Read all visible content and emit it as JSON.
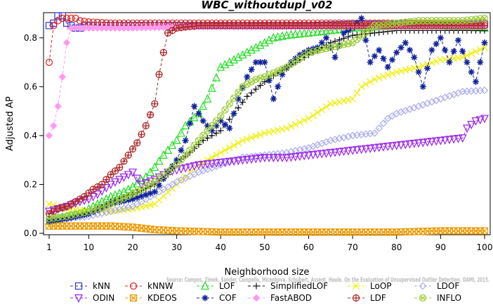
{
  "chart_data": {
    "type": "line",
    "title": "WBC_withoutdupl_v02",
    "xlabel": "Neighborhood size",
    "ylabel": "Adjusted AP",
    "xlim": [
      1,
      100
    ],
    "ylim": [
      0,
      0.88
    ],
    "x_ticks": [
      1,
      10,
      20,
      30,
      40,
      50,
      60,
      70,
      80,
      90,
      100
    ],
    "y_ticks": [
      0.0,
      0.2,
      0.4,
      0.6,
      0.8
    ],
    "y_tick_labels": [
      "0.0",
      "0.2",
      "0.4",
      "0.6",
      "0.8"
    ],
    "legend_position": "bottom",
    "watermark": "Source: Campos, Zimek, Sander, Campello, Micenkova, Schubert, Assent, Houle. On the Evaluation of Unsupervised Outlier Detection. DAMI, 2015.",
    "series": [
      {
        "name": "kNN",
        "color": "#3333cc",
        "marker": "square",
        "points": [
          [
            1,
            0.85
          ],
          [
            2,
            0.86
          ],
          [
            3,
            0.89
          ],
          [
            4,
            0.89
          ],
          [
            5,
            0.86
          ],
          [
            6,
            0.85
          ],
          [
            7,
            0.84
          ],
          [
            8,
            0.84
          ],
          [
            9,
            0.85
          ],
          [
            10,
            0.85
          ],
          [
            12,
            0.85
          ],
          [
            15,
            0.85
          ],
          [
            20,
            0.85
          ],
          [
            30,
            0.85
          ],
          [
            40,
            0.85
          ],
          [
            50,
            0.85
          ],
          [
            60,
            0.85
          ],
          [
            70,
            0.855
          ],
          [
            80,
            0.855
          ],
          [
            90,
            0.855
          ],
          [
            100,
            0.855
          ]
        ]
      },
      {
        "name": "kNNW",
        "color": "#dd2222",
        "marker": "circle",
        "points": [
          [
            1,
            0.7
          ],
          [
            2,
            0.85
          ],
          [
            3,
            0.87
          ],
          [
            4,
            0.88
          ],
          [
            5,
            0.88
          ],
          [
            6,
            0.88
          ],
          [
            7,
            0.88
          ],
          [
            8,
            0.87
          ],
          [
            10,
            0.865
          ],
          [
            15,
            0.86
          ],
          [
            20,
            0.86
          ],
          [
            30,
            0.86
          ],
          [
            40,
            0.86
          ],
          [
            50,
            0.86
          ],
          [
            60,
            0.86
          ],
          [
            70,
            0.86
          ],
          [
            80,
            0.86
          ],
          [
            90,
            0.86
          ],
          [
            100,
            0.86
          ]
        ]
      },
      {
        "name": "LOF",
        "color": "#22dd22",
        "marker": "triangle-up",
        "points": [
          [
            1,
            0.05
          ],
          [
            3,
            0.06
          ],
          [
            5,
            0.07
          ],
          [
            8,
            0.08
          ],
          [
            10,
            0.1
          ],
          [
            12,
            0.12
          ],
          [
            15,
            0.15
          ],
          [
            18,
            0.17
          ],
          [
            20,
            0.19
          ],
          [
            23,
            0.23
          ],
          [
            25,
            0.27
          ],
          [
            27,
            0.32
          ],
          [
            30,
            0.38
          ],
          [
            32,
            0.44
          ],
          [
            35,
            0.49
          ],
          [
            37,
            0.55
          ],
          [
            40,
            0.68
          ],
          [
            42,
            0.7
          ],
          [
            45,
            0.73
          ],
          [
            48,
            0.76
          ],
          [
            50,
            0.78
          ],
          [
            52,
            0.8
          ],
          [
            55,
            0.81
          ],
          [
            60,
            0.82
          ],
          [
            65,
            0.83
          ],
          [
            70,
            0.84
          ],
          [
            75,
            0.845
          ],
          [
            80,
            0.85
          ],
          [
            85,
            0.85
          ],
          [
            90,
            0.85
          ],
          [
            95,
            0.845
          ],
          [
            100,
            0.84
          ]
        ]
      },
      {
        "name": "SimplifiedLOF",
        "color": "#111111",
        "marker": "plus",
        "points": [
          [
            1,
            0.05
          ],
          [
            5,
            0.06
          ],
          [
            10,
            0.08
          ],
          [
            15,
            0.13
          ],
          [
            20,
            0.16
          ],
          [
            25,
            0.2
          ],
          [
            28,
            0.24
          ],
          [
            30,
            0.29
          ],
          [
            33,
            0.33
          ],
          [
            36,
            0.38
          ],
          [
            40,
            0.42
          ],
          [
            43,
            0.49
          ],
          [
            46,
            0.56
          ],
          [
            50,
            0.62
          ],
          [
            55,
            0.68
          ],
          [
            60,
            0.73
          ],
          [
            65,
            0.78
          ],
          [
            70,
            0.81
          ],
          [
            75,
            0.82
          ],
          [
            80,
            0.83
          ],
          [
            85,
            0.83
          ],
          [
            90,
            0.83
          ],
          [
            95,
            0.83
          ],
          [
            100,
            0.83
          ]
        ]
      },
      {
        "name": "LoOP",
        "color": "#eeee00",
        "marker": "x",
        "points": [
          [
            1,
            0.12
          ],
          [
            5,
            0.1
          ],
          [
            10,
            0.09
          ],
          [
            15,
            0.09
          ],
          [
            20,
            0.1
          ],
          [
            25,
            0.12
          ],
          [
            30,
            0.2
          ],
          [
            35,
            0.28
          ],
          [
            40,
            0.33
          ],
          [
            45,
            0.38
          ],
          [
            50,
            0.41
          ],
          [
            55,
            0.43
          ],
          [
            60,
            0.47
          ],
          [
            65,
            0.53
          ],
          [
            70,
            0.55
          ],
          [
            72,
            0.6
          ],
          [
            75,
            0.63
          ],
          [
            80,
            0.66
          ],
          [
            85,
            0.68
          ],
          [
            90,
            0.71
          ],
          [
            95,
            0.72
          ],
          [
            100,
            0.76
          ]
        ]
      },
      {
        "name": "LDOF",
        "color": "#aaaaee",
        "marker": "diamond",
        "points": [
          [
            1,
            0.06
          ],
          [
            5,
            0.06
          ],
          [
            10,
            0.07
          ],
          [
            15,
            0.09
          ],
          [
            20,
            0.11
          ],
          [
            25,
            0.16
          ],
          [
            30,
            0.21
          ],
          [
            35,
            0.25
          ],
          [
            40,
            0.28
          ],
          [
            45,
            0.31
          ],
          [
            50,
            0.32
          ],
          [
            55,
            0.33
          ],
          [
            60,
            0.35
          ],
          [
            65,
            0.38
          ],
          [
            70,
            0.4
          ],
          [
            75,
            0.41
          ],
          [
            78,
            0.47
          ],
          [
            80,
            0.49
          ],
          [
            85,
            0.52
          ],
          [
            90,
            0.55
          ],
          [
            95,
            0.58
          ],
          [
            100,
            0.585
          ]
        ]
      },
      {
        "name": "ODIN",
        "color": "#9922ee",
        "marker": "triangle-down",
        "points": [
          [
            1,
            0.09
          ],
          [
            3,
            0.1
          ],
          [
            5,
            0.11
          ],
          [
            8,
            0.13
          ],
          [
            10,
            0.14
          ],
          [
            12,
            0.16
          ],
          [
            15,
            0.2
          ],
          [
            18,
            0.23
          ],
          [
            20,
            0.25
          ],
          [
            22,
            0.2
          ],
          [
            25,
            0.22
          ],
          [
            28,
            0.25
          ],
          [
            30,
            0.26
          ],
          [
            35,
            0.28
          ],
          [
            40,
            0.29
          ],
          [
            45,
            0.3
          ],
          [
            50,
            0.31
          ],
          [
            55,
            0.31
          ],
          [
            60,
            0.32
          ],
          [
            65,
            0.33
          ],
          [
            70,
            0.34
          ],
          [
            75,
            0.35
          ],
          [
            80,
            0.36
          ],
          [
            85,
            0.37
          ],
          [
            90,
            0.38
          ],
          [
            95,
            0.39
          ],
          [
            96,
            0.43
          ],
          [
            98,
            0.46
          ],
          [
            100,
            0.47
          ]
        ]
      },
      {
        "name": "KDEOS",
        "color": "#ee9900",
        "marker": "x-square",
        "points": [
          [
            1,
            0.03
          ],
          [
            5,
            0.03
          ],
          [
            10,
            0.03
          ],
          [
            15,
            0.03
          ],
          [
            20,
            0.025
          ],
          [
            25,
            0.015
          ],
          [
            30,
            0.01
          ],
          [
            40,
            0.005
          ],
          [
            50,
            0.005
          ],
          [
            60,
            0.005
          ],
          [
            70,
            0.005
          ],
          [
            80,
            0.005
          ],
          [
            90,
            0.01
          ],
          [
            100,
            0.01
          ]
        ]
      },
      {
        "name": "COF",
        "color": "#112299",
        "marker": "star",
        "points": [
          [
            1,
            0.05
          ],
          [
            5,
            0.06
          ],
          [
            10,
            0.08
          ],
          [
            15,
            0.12
          ],
          [
            20,
            0.14
          ],
          [
            25,
            0.17
          ],
          [
            28,
            0.25
          ],
          [
            30,
            0.3
          ],
          [
            32,
            0.38
          ],
          [
            34,
            0.52
          ],
          [
            36,
            0.46
          ],
          [
            38,
            0.42
          ],
          [
            40,
            0.46
          ],
          [
            42,
            0.43
          ],
          [
            44,
            0.55
          ],
          [
            46,
            0.64
          ],
          [
            48,
            0.7
          ],
          [
            50,
            0.7
          ],
          [
            52,
            0.55
          ],
          [
            54,
            0.65
          ],
          [
            56,
            0.7
          ],
          [
            58,
            0.73
          ],
          [
            60,
            0.75
          ],
          [
            62,
            0.76
          ],
          [
            64,
            0.8
          ],
          [
            66,
            0.72
          ],
          [
            68,
            0.82
          ],
          [
            70,
            0.84
          ],
          [
            72,
            0.88
          ],
          [
            74,
            0.7
          ],
          [
            76,
            0.75
          ],
          [
            78,
            0.68
          ],
          [
            80,
            0.74
          ],
          [
            82,
            0.78
          ],
          [
            84,
            0.72
          ],
          [
            86,
            0.6
          ],
          [
            88,
            0.75
          ],
          [
            90,
            0.8
          ],
          [
            92,
            0.7
          ],
          [
            94,
            0.79
          ],
          [
            96,
            0.7
          ],
          [
            98,
            0.62
          ],
          [
            100,
            0.78
          ]
        ]
      },
      {
        "name": "FastABOD",
        "color": "#ff99ee",
        "marker": "diamond-filled",
        "points": [
          [
            1,
            0.4
          ],
          [
            2,
            0.44
          ],
          [
            3,
            0.52
          ],
          [
            4,
            0.64
          ],
          [
            5,
            0.78
          ],
          [
            6,
            0.84
          ],
          [
            8,
            0.84
          ],
          [
            10,
            0.84
          ],
          [
            15,
            0.84
          ],
          [
            20,
            0.84
          ],
          [
            30,
            0.845
          ],
          [
            40,
            0.845
          ],
          [
            50,
            0.845
          ],
          [
            60,
            0.845
          ],
          [
            70,
            0.845
          ],
          [
            80,
            0.845
          ],
          [
            90,
            0.845
          ],
          [
            100,
            0.845
          ]
        ]
      },
      {
        "name": "LDF",
        "color": "#aa2222",
        "marker": "circle-plus",
        "points": [
          [
            1,
            0.08
          ],
          [
            3,
            0.1
          ],
          [
            5,
            0.11
          ],
          [
            7,
            0.13
          ],
          [
            9,
            0.15
          ],
          [
            11,
            0.18
          ],
          [
            13,
            0.2
          ],
          [
            15,
            0.24
          ],
          [
            17,
            0.27
          ],
          [
            19,
            0.32
          ],
          [
            21,
            0.37
          ],
          [
            23,
            0.44
          ],
          [
            25,
            0.53
          ],
          [
            26,
            0.65
          ],
          [
            27,
            0.74
          ],
          [
            28,
            0.82
          ],
          [
            30,
            0.84
          ],
          [
            35,
            0.85
          ],
          [
            40,
            0.85
          ],
          [
            50,
            0.85
          ],
          [
            60,
            0.85
          ],
          [
            70,
            0.85
          ],
          [
            80,
            0.85
          ],
          [
            90,
            0.85
          ],
          [
            100,
            0.85
          ]
        ]
      },
      {
        "name": "INFLO",
        "color": "#99cc33",
        "marker": "x-circle",
        "points": [
          [
            1,
            0.06
          ],
          [
            5,
            0.07
          ],
          [
            10,
            0.09
          ],
          [
            15,
            0.12
          ],
          [
            20,
            0.16
          ],
          [
            25,
            0.21
          ],
          [
            30,
            0.28
          ],
          [
            33,
            0.34
          ],
          [
            36,
            0.4
          ],
          [
            38,
            0.44
          ],
          [
            40,
            0.48
          ],
          [
            42,
            0.53
          ],
          [
            45,
            0.6
          ],
          [
            48,
            0.63
          ],
          [
            50,
            0.64
          ],
          [
            55,
            0.68
          ],
          [
            60,
            0.74
          ],
          [
            65,
            0.76
          ],
          [
            70,
            0.78
          ],
          [
            75,
            0.85
          ],
          [
            80,
            0.86
          ],
          [
            85,
            0.87
          ],
          [
            90,
            0.87
          ],
          [
            95,
            0.87
          ],
          [
            100,
            0.88
          ]
        ]
      }
    ]
  }
}
